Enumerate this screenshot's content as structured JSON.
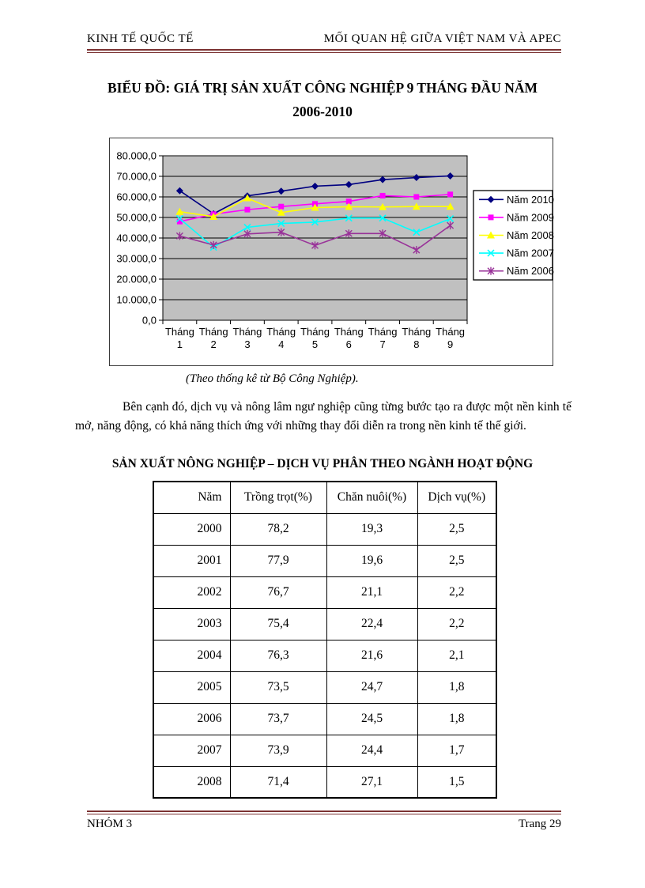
{
  "page": {
    "header_left": "KINH TẾ QUỐC TẾ",
    "header_right": "MỐI QUAN HỆ GIỮA VIỆT NAM VÀ APEC",
    "footer_left": "NHÓM 3",
    "footer_right": "Trang 29"
  },
  "title": {
    "line1": "BIỂU ĐỒ: GIÁ TRỊ SẢN XUẤT CÔNG NGHIỆP 9 THÁNG ĐẦU NĂM",
    "line2": "2006-2010"
  },
  "chart_caption": "(Theo thống kê từ Bộ Công Nghiệp).",
  "paragraph": "Bên cạnh đó, dịch vụ và nông lâm ngư nghiệp cũng từng bước tạo ra được một nền kinh tế mở, năng động, có khả năng thích ứng với những thay đổi diễn ra trong nền kinh tế thế giới.",
  "table": {
    "title": "SẢN XUẤT NÔNG NGHIỆP – DỊCH VỤ PHÂN THEO NGÀNH HOẠT ĐỘNG",
    "headers": [
      "Năm",
      "Trồng trọt(%)",
      "Chăn nuôi(%)",
      "Dịch vụ(%)"
    ],
    "rows": [
      [
        "2000",
        "78,2",
        "19,3",
        "2,5"
      ],
      [
        "2001",
        "77,9",
        "19,6",
        "2,5"
      ],
      [
        "2002",
        "76,7",
        "21,1",
        "2,2"
      ],
      [
        "2003",
        "75,4",
        "22,4",
        "2,2"
      ],
      [
        "2004",
        "76,3",
        "21,6",
        "2,1"
      ],
      [
        "2005",
        "73,5",
        "24,7",
        "1,8"
      ],
      [
        "2006",
        "73,7",
        "24,5",
        "1,8"
      ],
      [
        "2007",
        "73,9",
        "24,4",
        "1,7"
      ],
      [
        "2008",
        "71,4",
        "27,1",
        "1,5"
      ]
    ]
  },
  "chart_data": {
    "type": "line",
    "title": "Giá trị sản xuất công nghiệp 9 tháng đầu năm 2006-2010",
    "categories": [
      "Tháng 1",
      "Tháng 2",
      "Tháng 3",
      "Tháng 4",
      "Tháng 5",
      "Tháng 6",
      "Tháng 7",
      "Tháng 8",
      "Tháng 9"
    ],
    "series": [
      {
        "name": "Năm 2010",
        "color": "#000080",
        "marker": "diamond",
        "values": [
          63000,
          51800,
          60500,
          62800,
          65200,
          66000,
          68400,
          69400,
          70200
        ]
      },
      {
        "name": "Năm 2009",
        "color": "#FF00FF",
        "marker": "square",
        "values": [
          48000,
          51600,
          53800,
          55300,
          56600,
          57800,
          60600,
          60000,
          61200
        ]
      },
      {
        "name": "Năm 2008",
        "color": "#FFFF00",
        "marker": "triangle",
        "values": [
          52800,
          50400,
          59400,
          52400,
          54800,
          55200,
          55100,
          55300,
          55300
        ]
      },
      {
        "name": "Năm 2007",
        "color": "#00FFFF",
        "marker": "x",
        "values": [
          49400,
          35500,
          45200,
          47100,
          47700,
          49700,
          49700,
          42800,
          49400
        ]
      },
      {
        "name": "Năm 2006",
        "color": "#993399",
        "marker": "star",
        "values": [
          41000,
          36600,
          42000,
          42800,
          36400,
          42200,
          42200,
          34200,
          46100
        ]
      }
    ],
    "ylim": [
      0,
      80000
    ],
    "y_step": 10000,
    "y_tick_labels": [
      "0,0",
      "10.000,0",
      "20.000,0",
      "30.000,0",
      "40.000,0",
      "50.000,0",
      "60.000,0",
      "70.000,0",
      "80.000,0"
    ],
    "xlabel": "",
    "ylabel": "",
    "grid": true,
    "plot_bg": "#C0C0C0",
    "legend_position": "right"
  },
  "colors": {
    "rule_maroon": "#7b3232",
    "plot_background": "#C0C0C0",
    "grid_line": "#000000"
  }
}
